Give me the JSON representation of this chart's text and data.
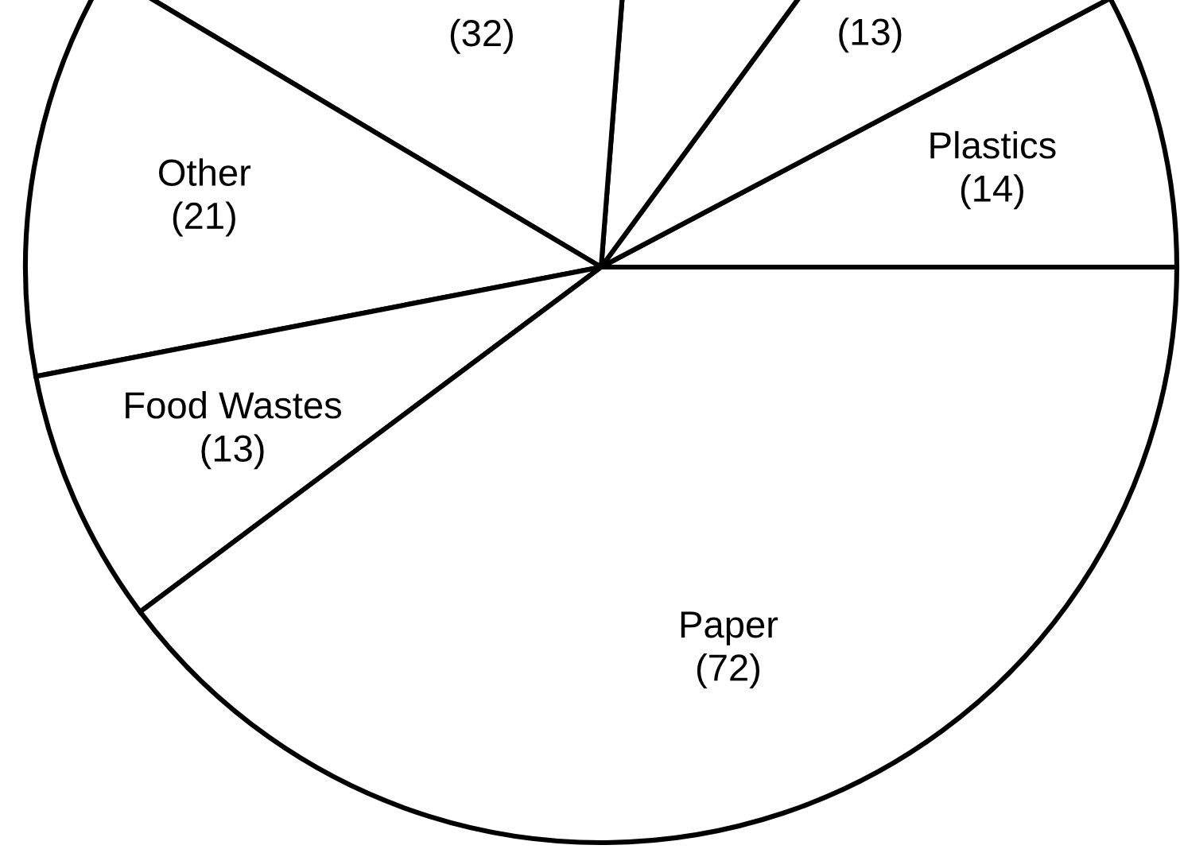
{
  "chart_data": {
    "type": "pie",
    "categories": [
      "Plastics",
      null,
      null,
      null,
      "Other",
      "Food Wastes",
      "Paper"
    ],
    "values": [
      14,
      13,
      16,
      32,
      21,
      13,
      72
    ],
    "value_labels": [
      "(14)",
      "(13)",
      null,
      "(32)",
      "(21)",
      "(13)",
      "(72)"
    ],
    "colors": [
      "#ffffff",
      "#ffffff",
      "#ffffff",
      "#ffffff",
      "#ffffff",
      "#ffffff",
      "#ffffff"
    ]
  }
}
